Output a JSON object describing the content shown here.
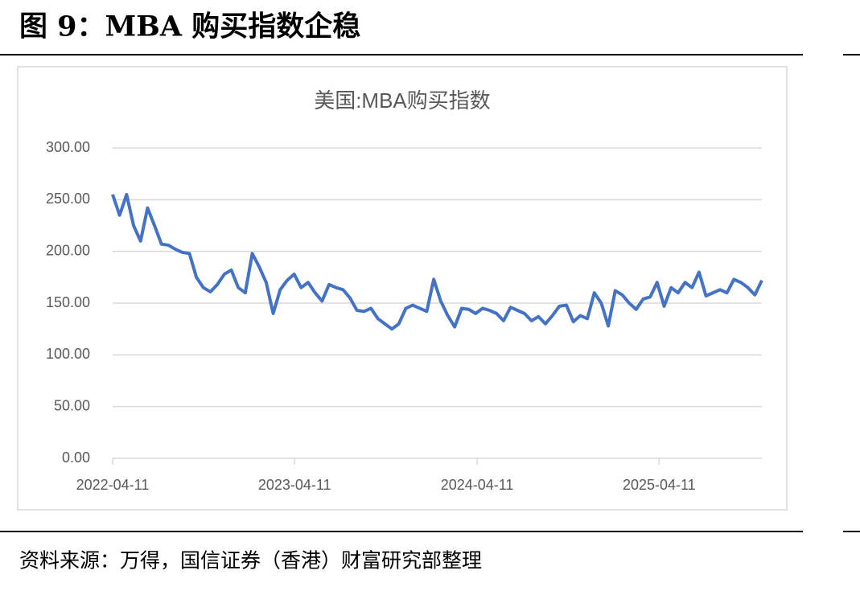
{
  "header": {
    "title": "图 9：MBA 购买指数企稳"
  },
  "chart_data": {
    "type": "line",
    "title": "美国:MBA购买指数",
    "x": [
      "2022-04-11",
      "2022-04-25",
      "2022-05-09",
      "2022-05-23",
      "2022-06-06",
      "2022-06-20",
      "2022-07-04",
      "2022-07-18",
      "2022-08-01",
      "2022-08-15",
      "2022-08-29",
      "2022-09-12",
      "2022-09-26",
      "2022-10-10",
      "2022-10-24",
      "2022-11-07",
      "2022-11-21",
      "2022-12-05",
      "2022-12-19",
      "2023-01-02",
      "2023-01-16",
      "2023-01-30",
      "2023-02-13",
      "2023-02-27",
      "2023-03-13",
      "2023-03-27",
      "2023-04-10",
      "2023-04-24",
      "2023-05-08",
      "2023-05-22",
      "2023-06-05",
      "2023-06-19",
      "2023-07-03",
      "2023-07-17",
      "2023-07-31",
      "2023-08-14",
      "2023-08-28",
      "2023-09-11",
      "2023-09-25",
      "2023-10-09",
      "2023-10-23",
      "2023-11-06",
      "2023-11-20",
      "2023-12-04",
      "2023-12-18",
      "2024-01-01",
      "2024-01-15",
      "2024-01-29",
      "2024-02-12",
      "2024-02-26",
      "2024-03-11",
      "2024-03-25",
      "2024-04-08",
      "2024-04-22",
      "2024-05-06",
      "2024-05-20",
      "2024-06-03",
      "2024-06-17",
      "2024-07-01",
      "2024-07-15",
      "2024-07-29",
      "2024-08-12",
      "2024-08-26",
      "2024-09-09",
      "2024-09-23",
      "2024-10-07",
      "2024-10-21",
      "2024-11-04",
      "2024-11-18",
      "2024-12-02",
      "2024-12-16",
      "2024-12-30",
      "2025-01-13",
      "2025-01-27",
      "2025-02-10",
      "2025-02-24",
      "2025-03-10",
      "2025-03-24",
      "2025-04-07",
      "2025-04-21",
      "2025-05-05",
      "2025-05-19",
      "2025-06-02",
      "2025-06-16",
      "2025-06-30",
      "2025-07-14",
      "2025-07-28",
      "2025-08-11",
      "2025-08-25",
      "2025-09-08",
      "2025-09-22",
      "2025-10-06",
      "2025-10-20",
      "2025-11-03"
    ],
    "series": [
      {
        "name": "美国:MBA购买指数",
        "color": "#4472c4",
        "values": [
          255,
          235,
          255,
          225,
          210,
          242,
          225,
          207,
          206,
          202,
          199,
          198,
          175,
          165,
          161,
          168,
          178,
          182,
          165,
          160,
          198,
          185,
          170,
          140,
          163,
          172,
          178,
          165,
          170,
          160,
          152,
          168,
          165,
          163,
          155,
          143,
          142,
          145,
          135,
          130,
          125,
          130,
          145,
          148,
          145,
          142,
          173,
          152,
          138,
          127,
          145,
          144,
          140,
          145,
          143,
          140,
          133,
          146,
          143,
          140,
          133,
          137,
          130,
          138,
          147,
          148,
          132,
          138,
          135,
          160,
          150,
          128,
          162,
          158,
          150,
          144,
          154,
          156,
          170,
          147,
          165,
          160,
          170,
          165,
          180,
          157,
          160,
          163,
          160,
          173,
          170,
          165,
          158,
          172
        ]
      }
    ],
    "xlim": [
      "2022-04-11",
      "2025-11-03"
    ],
    "xticks": [
      "2022-04-11",
      "2023-04-11",
      "2024-04-11",
      "2025-04-11"
    ],
    "ylim": [
      0,
      300
    ],
    "yticks": [
      {
        "value": 0,
        "label": "0.00"
      },
      {
        "value": 50,
        "label": "50.00"
      },
      {
        "value": 100,
        "label": "100.00"
      },
      {
        "value": 150,
        "label": "150.00"
      },
      {
        "value": 200,
        "label": "200.00"
      },
      {
        "value": 250,
        "label": "250.00"
      },
      {
        "value": 300,
        "label": "300.00"
      }
    ],
    "grid": true
  },
  "footer": {
    "source": "资料来源：万得，国信证券（香港）财富研究部整理"
  }
}
